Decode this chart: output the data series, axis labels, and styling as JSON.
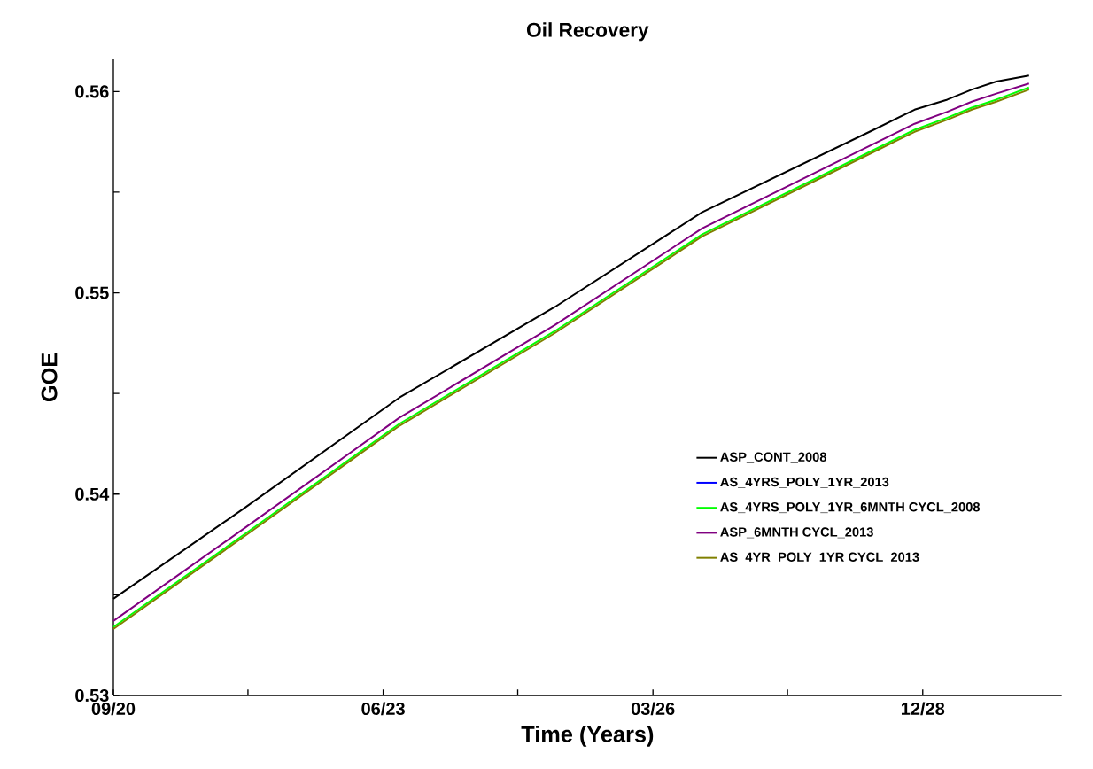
{
  "chart_data": {
    "type": "line",
    "title": "Oil Recovery",
    "xlabel": "Time (Years)",
    "ylabel": "GOE",
    "x": [
      "2020-09",
      "2022-01",
      "2023-08",
      "2025-03",
      "2026-09",
      "2028-06",
      "2028-11",
      "2029-03",
      "2029-06",
      "2029-09",
      "2030-01"
    ],
    "series": [
      {
        "name": "ASP_CONT_2008",
        "color": "#000000",
        "values": [
          0.5348,
          0.5393,
          0.5448,
          0.5493,
          0.554,
          0.5581,
          0.5591,
          0.5596,
          0.5601,
          0.5605,
          0.5608
        ]
      },
      {
        "name": "AS_4YRS_POLY_1YR_2013",
        "color": "#0000ff",
        "values": [
          null,
          null,
          null,
          null,
          null,
          null,
          null,
          null,
          null,
          null,
          null
        ]
      },
      {
        "name": "AS_4YRS_POLY_1YR_6MNTH CYCL_2008",
        "color": "#00ff00",
        "values": [
          0.5334,
          0.538,
          0.5435,
          0.5481,
          0.5529,
          0.5571,
          0.5581,
          0.5587,
          0.5592,
          0.5596,
          0.5602
        ]
      },
      {
        "name": "ASP_6MNTH CYCL_2013",
        "color": "#800080",
        "values": [
          0.5337,
          0.5383,
          0.5438,
          0.5484,
          0.5532,
          0.5574,
          0.5584,
          0.559,
          0.5595,
          0.5599,
          0.5604
        ]
      },
      {
        "name": "AS_4YR_POLY_1YR CYCL_2013",
        "color": "#808000",
        "values": [
          0.5333,
          0.5379,
          0.5434,
          0.548,
          0.5528,
          0.557,
          0.558,
          0.5586,
          0.5591,
          0.5595,
          0.5601
        ]
      }
    ],
    "xlim": [
      "2020-09",
      "2030-05"
    ],
    "xticks": [
      {
        "value": "2020-09",
        "label": "09/20"
      },
      {
        "value": "2022-01-15",
        "label": null
      },
      {
        "value": "2023-06",
        "label": "06/23"
      },
      {
        "value": "2024-10-15",
        "label": null
      },
      {
        "value": "2026-03",
        "label": "03/26"
      },
      {
        "value": "2027-07-15",
        "label": null
      },
      {
        "value": "2028-12",
        "label": "12/28"
      }
    ],
    "ylim": [
      0.53,
      0.5616
    ],
    "yticks": [
      0.53,
      {
        "value": 0.535,
        "label": null
      },
      0.54,
      {
        "value": 0.545,
        "label": null
      },
      0.55,
      {
        "value": 0.555,
        "label": null
      },
      0.56
    ],
    "legend": "right",
    "grid": false,
    "marker": "none",
    "line_style": "solid"
  }
}
